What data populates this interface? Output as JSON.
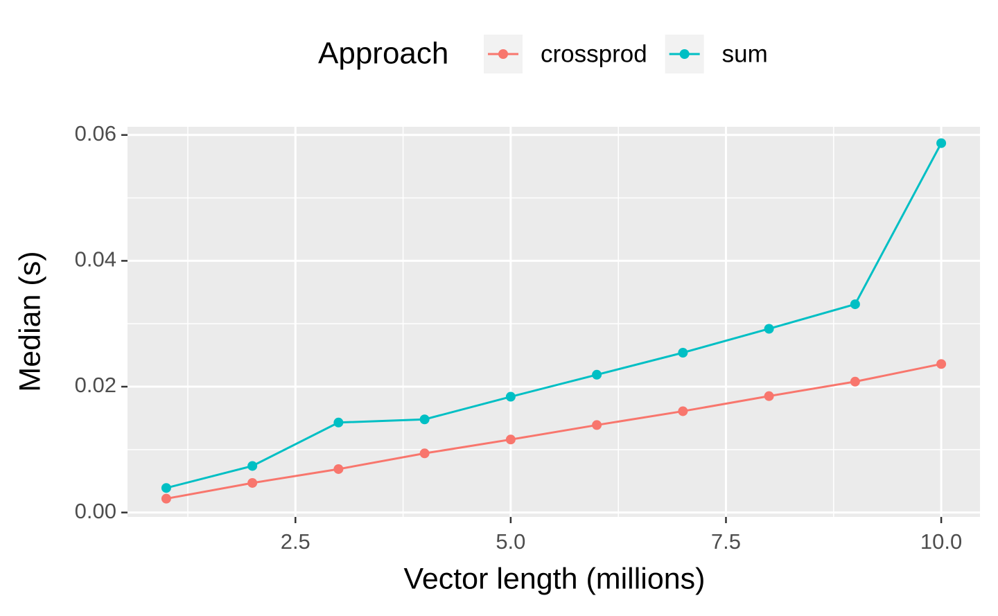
{
  "chart_data": {
    "type": "line",
    "x_label": "Vector length (millions)",
    "y_label": "Median (s)",
    "legend_title": "Approach",
    "legend_position": "top",
    "x": [
      1,
      2,
      3,
      4,
      5,
      6,
      7,
      8,
      9,
      10
    ],
    "series": [
      {
        "name": "crossprod",
        "color": "#f8766d",
        "values": [
          0.0022,
          0.0047,
          0.0069,
          0.0094,
          0.0116,
          0.0139,
          0.0161,
          0.0185,
          0.0208,
          0.0236
        ]
      },
      {
        "name": "sum",
        "color": "#00bfc4",
        "values": [
          0.0039,
          0.0074,
          0.0143,
          0.0148,
          0.0184,
          0.0219,
          0.0254,
          0.0292,
          0.0331,
          0.0587
        ]
      }
    ],
    "xlim": [
      0.55,
      10.45
    ],
    "ylim": [
      -0.0007,
      0.0613
    ],
    "xticks": [
      2.5,
      {
        "value": 5,
        "label": "5.0"
      },
      7.5,
      {
        "value": 10,
        "label": "10.0"
      }
    ],
    "yticks": [
      {
        "value": 0,
        "label": "0.00"
      },
      {
        "value": 0.02,
        "label": "0.02"
      },
      {
        "value": 0.04,
        "label": "0.04"
      },
      {
        "value": 0.06,
        "label": "0.06"
      }
    ],
    "grid": true
  }
}
